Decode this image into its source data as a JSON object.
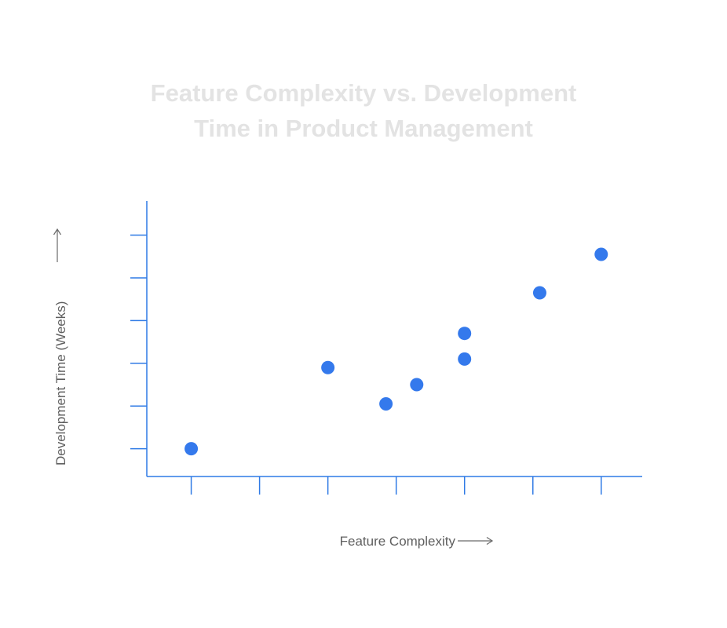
{
  "chart_data": {
    "type": "scatter",
    "title": "Feature Complexity vs. Development Time in Product Management",
    "title_lines": [
      "Feature Complexity vs. Development",
      "Time in Product Management"
    ],
    "xlabel": "Feature Complexity",
    "ylabel": "Development Time (Weeks)",
    "xlim": [
      0.35,
      7.6
    ],
    "ylim": [
      0.35,
      6.8
    ],
    "x_ticks": [
      1,
      2,
      3,
      4,
      5,
      6,
      7
    ],
    "y_ticks": [
      1,
      2,
      3,
      4,
      5,
      6
    ],
    "tick_labels_shown": false,
    "grid": false,
    "point_color": "#3479ec",
    "axis_color": "#2f7ae5",
    "title_color": "#e3e3e3",
    "points": [
      {
        "x": 1.0,
        "y": 1.0
      },
      {
        "x": 3.0,
        "y": 2.9
      },
      {
        "x": 3.85,
        "y": 2.05
      },
      {
        "x": 4.3,
        "y": 2.5
      },
      {
        "x": 5.0,
        "y": 3.1
      },
      {
        "x": 5.0,
        "y": 3.7
      },
      {
        "x": 6.1,
        "y": 4.65
      },
      {
        "x": 7.0,
        "y": 5.55
      }
    ]
  }
}
